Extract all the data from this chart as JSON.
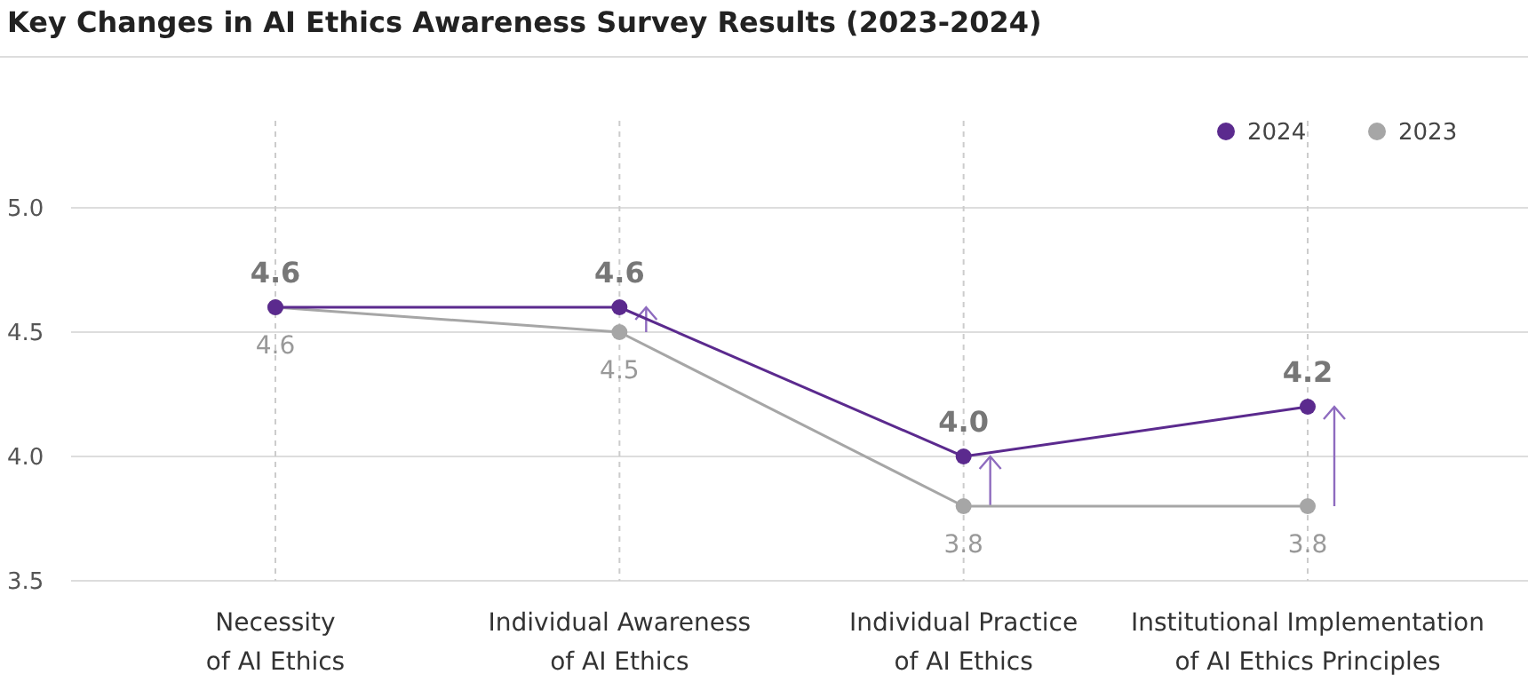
{
  "chart_data": {
    "type": "line",
    "title": "Key Changes in AI Ethics Awareness Survey Results (2023-2024)",
    "categories": [
      "Necessity\nof AI Ethics",
      "Individual Awareness\nof AI Ethics",
      "Individual Practice\nof AI Ethics",
      "Institutional Implementation\nof AI Ethics Principles"
    ],
    "series": [
      {
        "name": "2024",
        "color": "#5b2a8e",
        "values": [
          4.6,
          4.6,
          4.0,
          4.2
        ],
        "value_labels": [
          "4.6",
          "4.6",
          "4.0",
          "4.2"
        ]
      },
      {
        "name": "2023",
        "color": "#a6a6a6",
        "values": [
          4.6,
          4.5,
          3.8,
          3.8
        ],
        "value_labels": [
          "4.6",
          "4.5",
          "3.8",
          "3.8"
        ]
      }
    ],
    "ylim": [
      3.5,
      5.0
    ],
    "yticks": [
      3.5,
      {
        "value": 4,
        "label": "4.0"
      },
      4.5,
      {
        "value": 5,
        "label": "5.0"
      }
    ],
    "grid": true,
    "legend": "top right",
    "marker": "circle",
    "line_style": "solid"
  }
}
